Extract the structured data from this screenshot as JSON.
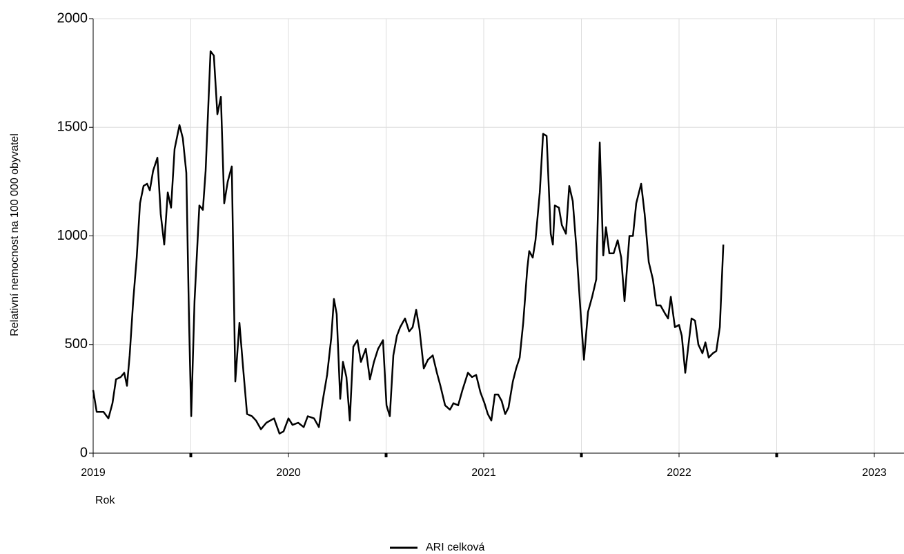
{
  "chart_data": {
    "type": "line",
    "x_label": "Rok",
    "y_label": "Relativní nemocnost na 100 000 obyvatel",
    "xlim": [
      2019,
      2023.152
    ],
    "xticks": [
      2019,
      2020,
      2021,
      2022,
      2023
    ],
    "x_minor_ticks": [
      2019.5,
      2020.5,
      2021.5,
      2022.5
    ],
    "ylim": [
      0,
      2000
    ],
    "yticks": [
      0,
      500,
      1000,
      1500,
      2000
    ],
    "grid": true,
    "legend": "bottom",
    "x": [
      2019.0,
      2019.018,
      2019.053,
      2019.078,
      2019.099,
      2019.117,
      2019.141,
      2019.159,
      2019.173,
      2019.187,
      2019.205,
      2019.223,
      2019.24,
      2019.258,
      2019.276,
      2019.29,
      2019.307,
      2019.329,
      2019.346,
      2019.364,
      2019.382,
      2019.399,
      2019.417,
      2019.442,
      2019.459,
      2019.477,
      2019.491,
      2019.502,
      2019.519,
      2019.544,
      2019.562,
      2019.576,
      2019.601,
      2019.618,
      2019.636,
      2019.654,
      2019.671,
      2019.689,
      2019.71,
      2019.728,
      2019.749,
      2019.767,
      2019.788,
      2019.813,
      2019.834,
      2019.859,
      2019.887,
      2019.926,
      2019.954,
      2019.975,
      2020.0,
      2020.021,
      2020.05,
      2020.078,
      2020.099,
      2020.131,
      2020.156,
      2020.177,
      2020.198,
      2020.219,
      2020.233,
      2020.247,
      2020.265,
      2020.279,
      2020.297,
      2020.314,
      2020.332,
      2020.353,
      2020.371,
      2020.396,
      2020.417,
      2020.438,
      2020.459,
      2020.484,
      2020.502,
      2020.519,
      2020.537,
      2020.555,
      2020.572,
      2020.597,
      2020.618,
      2020.636,
      2020.654,
      2020.671,
      2020.693,
      2020.714,
      2020.739,
      2020.76,
      2020.778,
      2020.802,
      2020.827,
      2020.845,
      2020.869,
      2020.891,
      2020.919,
      2020.94,
      2020.961,
      2020.983,
      2021.004,
      2021.021,
      2021.039,
      2021.057,
      2021.074,
      2021.092,
      2021.11,
      2021.127,
      2021.149,
      2021.166,
      2021.184,
      2021.202,
      2021.223,
      2021.233,
      2021.251,
      2021.265,
      2021.287,
      2021.304,
      2021.322,
      2021.343,
      2021.354,
      2021.364,
      2021.385,
      2021.4,
      2021.421,
      2021.438,
      2021.456,
      2021.474,
      2021.495,
      2021.513,
      2021.534,
      2021.555,
      2021.576,
      2021.594,
      2021.612,
      2021.626,
      2021.643,
      2021.665,
      2021.686,
      2021.704,
      2021.721,
      2021.746,
      2021.764,
      2021.781,
      2021.806,
      2021.824,
      2021.845,
      2021.866,
      2021.884,
      2021.905,
      2021.93,
      2021.944,
      2021.958,
      2021.979,
      2022.0,
      2022.014,
      2022.032,
      2022.05,
      2022.064,
      2022.082,
      2022.099,
      2022.12,
      2022.135,
      2022.152,
      2022.174,
      2022.191,
      2022.209,
      2022.227
    ],
    "series": [
      {
        "name": "ARI celková",
        "color": "#000000",
        "values": [
          290,
          190,
          190,
          160,
          230,
          340,
          350,
          370,
          310,
          450,
          700,
          900,
          1150,
          1230,
          1240,
          1210,
          1300,
          1360,
          1100,
          960,
          1200,
          1130,
          1400,
          1510,
          1450,
          1290,
          600,
          170,
          700,
          1140,
          1120,
          1300,
          1850,
          1830,
          1560,
          1640,
          1150,
          1250,
          1320,
          330,
          600,
          400,
          180,
          170,
          150,
          110,
          140,
          160,
          90,
          100,
          160,
          130,
          140,
          120,
          170,
          160,
          120,
          250,
          360,
          530,
          710,
          640,
          250,
          420,
          350,
          150,
          490,
          520,
          420,
          480,
          340,
          420,
          480,
          520,
          220,
          170,
          450,
          540,
          580,
          620,
          560,
          580,
          660,
          570,
          390,
          430,
          450,
          370,
          310,
          220,
          200,
          230,
          220,
          290,
          370,
          350,
          360,
          280,
          230,
          180,
          150,
          270,
          270,
          240,
          180,
          210,
          330,
          390,
          440,
          600,
          850,
          930,
          900,
          980,
          1200,
          1470,
          1460,
          1010,
          960,
          1140,
          1130,
          1050,
          1010,
          1230,
          1160,
          950,
          660,
          430,
          650,
          720,
          800,
          1430,
          910,
          1040,
          920,
          920,
          980,
          900,
          700,
          1000,
          1000,
          1150,
          1240,
          1100,
          880,
          800,
          680,
          680,
          640,
          620,
          720,
          580,
          590,
          540,
          370,
          510,
          620,
          610,
          500,
          460,
          510,
          440,
          460,
          470,
          580,
          960
        ]
      }
    ]
  }
}
